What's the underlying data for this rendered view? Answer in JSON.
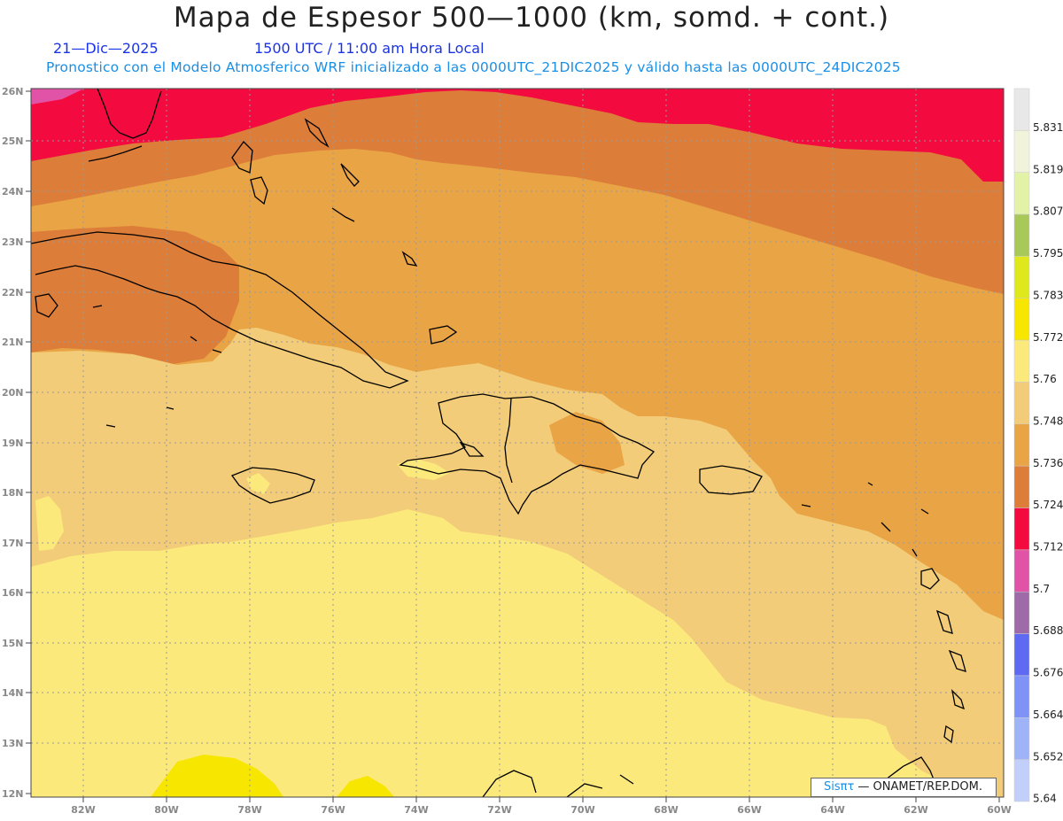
{
  "title": "Mapa de Espesor 500—1000 (km, somd. + cont.)",
  "date": "21—Dic—2025",
  "time": "1500 UTC / 11:00 am Hora Local",
  "description": "Pronostico con el Modelo Atmosferico WRF inicializado a las 0000UTC_21DIC2025 y válido hasta las  0000UTC_24DIC2025",
  "credit": {
    "brand": "Sisπτ",
    "org": " — ONAMET/REP.DOM."
  },
  "lat_labels": [
    "26N",
    "25N",
    "24N",
    "23N",
    "22N",
    "21N",
    "20N",
    "19N",
    "18N",
    "17N",
    "16N",
    "15N",
    "14N",
    "13N",
    "12N"
  ],
  "lon_labels": [
    "82W",
    "80W",
    "78W",
    "76W",
    "74W",
    "72W",
    "70W",
    "68W",
    "66W",
    "64W",
    "62W",
    "60W"
  ],
  "colorbar": {
    "labels": [
      "5.831",
      "5.819",
      "5.807",
      "5.795",
      "5.783",
      "5.772",
      "5.76",
      "5.748",
      "5.736",
      "5.724",
      "5.712",
      "5.7",
      "5.688",
      "5.676",
      "5.664",
      "5.652",
      "5.64"
    ],
    "colors": [
      "#e8e8e8",
      "#f1f4da",
      "#e2f2a6",
      "#a9c85a",
      "#dfe81d",
      "#f6e600",
      "#fce97c",
      "#f2cc78",
      "#e9a445",
      "#dc7d39",
      "#f30b40",
      "#e153a6",
      "#9e6aa7",
      "#5f6af3",
      "#7f93f6",
      "#9fb3f8",
      "#c1cffa"
    ]
  },
  "contour_colors": {
    "very_light_yellow": "#f6e600",
    "light_yellow": "#fce97c",
    "tan": "#f2cc78",
    "light_orange": "#e9a445",
    "orange": "#dc7d39",
    "red": "#f30b40",
    "pink": "#e153a6"
  }
}
